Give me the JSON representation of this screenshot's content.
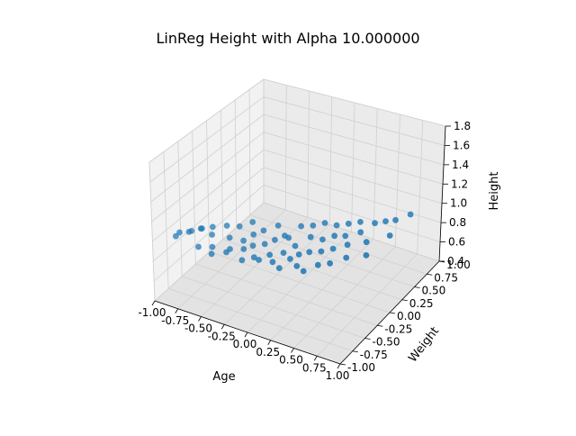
{
  "chart_data": {
    "type": "scatter",
    "projection": "3d",
    "title": "LinReg Height with Alpha 10.000000",
    "xlabel": "Age",
    "ylabel": "Weight",
    "zlabel": "Height",
    "xlim": [
      -1.0,
      1.0
    ],
    "ylim": [
      -1.0,
      1.0
    ],
    "zlim": [
      0.4,
      1.8
    ],
    "xticks": [
      "-1.00",
      "-0.75",
      "-0.50",
      "-0.25",
      "0.00",
      "0.25",
      "0.50",
      "0.75",
      "1.00"
    ],
    "yticks": [
      "-1.00",
      "-0.75",
      "-0.50",
      "-0.25",
      "0.00",
      "0.25",
      "0.50",
      "0.75",
      "1.00"
    ],
    "zticks": [
      "0.4",
      "0.6",
      "0.8",
      "1.0",
      "1.2",
      "1.4",
      "1.6",
      "1.8"
    ],
    "grid": true,
    "marker_color": "#1f77b4",
    "points": [
      {
        "x": -0.98,
        "y": -0.62,
        "z": 0.88
      },
      {
        "x": -0.92,
        "y": -0.65,
        "z": 0.95
      },
      {
        "x": -0.88,
        "y": -0.55,
        "z": 0.92
      },
      {
        "x": -0.82,
        "y": -0.6,
        "z": 0.97
      },
      {
        "x": -0.78,
        "y": -0.48,
        "z": 0.95
      },
      {
        "x": -0.75,
        "y": -0.55,
        "z": 0.99
      },
      {
        "x": -0.72,
        "y": -0.65,
        "z": 0.86
      },
      {
        "x": -0.7,
        "y": -0.42,
        "z": 0.96
      },
      {
        "x": -0.66,
        "y": -0.5,
        "z": 0.93
      },
      {
        "x": -0.6,
        "y": -0.6,
        "z": 0.87
      },
      {
        "x": -0.57,
        "y": -0.38,
        "z": 0.99
      },
      {
        "x": -0.55,
        "y": -0.7,
        "z": 0.86
      },
      {
        "x": -0.5,
        "y": -0.45,
        "z": 0.92
      },
      {
        "x": -0.48,
        "y": -0.3,
        "z": 0.97
      },
      {
        "x": -0.44,
        "y": -0.55,
        "z": 0.87
      },
      {
        "x": -0.42,
        "y": -0.65,
        "z": 0.89
      },
      {
        "x": -0.38,
        "y": -0.4,
        "z": 0.9
      },
      {
        "x": -0.35,
        "y": -0.28,
        "z": 1.04
      },
      {
        "x": -0.32,
        "y": -0.5,
        "z": 0.88
      },
      {
        "x": -0.3,
        "y": -0.35,
        "z": 0.96
      },
      {
        "x": -0.27,
        "y": -0.62,
        "z": 0.84
      },
      {
        "x": -0.25,
        "y": -0.45,
        "z": 0.91
      },
      {
        "x": -0.22,
        "y": -0.3,
        "z": 1.0
      },
      {
        "x": -0.18,
        "y": -0.55,
        "z": 0.86
      },
      {
        "x": -0.15,
        "y": -0.4,
        "z": 0.93
      },
      {
        "x": -0.12,
        "y": -0.2,
        "z": 1.03
      },
      {
        "x": -0.1,
        "y": -0.6,
        "z": 0.88
      },
      {
        "x": -0.07,
        "y": -0.35,
        "z": 0.97
      },
      {
        "x": -0.04,
        "y": -0.5,
        "z": 0.9
      },
      {
        "x": -0.02,
        "y": -0.25,
        "z": 0.98
      },
      {
        "x": 0.02,
        "y": -0.55,
        "z": 0.87
      },
      {
        "x": 0.05,
        "y": -0.3,
        "z": 1.0
      },
      {
        "x": 0.08,
        "y": -0.45,
        "z": 0.93
      },
      {
        "x": 0.1,
        "y": -0.15,
        "z": 1.06
      },
      {
        "x": 0.12,
        "y": -0.6,
        "z": 0.86
      },
      {
        "x": 0.15,
        "y": -0.35,
        "z": 0.97
      },
      {
        "x": 0.18,
        "y": -0.5,
        "z": 0.92
      },
      {
        "x": 0.2,
        "y": -0.1,
        "z": 1.07
      },
      {
        "x": 0.23,
        "y": -0.42,
        "z": 0.94
      },
      {
        "x": 0.26,
        "y": -0.25,
        "z": 1.04
      },
      {
        "x": 0.28,
        "y": -0.55,
        "z": 0.9
      },
      {
        "x": 0.3,
        "y": -0.05,
        "z": 1.1
      },
      {
        "x": 0.33,
        "y": -0.4,
        "z": 0.98
      },
      {
        "x": 0.36,
        "y": -0.2,
        "z": 1.02
      },
      {
        "x": 0.38,
        "y": -0.6,
        "z": 0.9
      },
      {
        "x": 0.4,
        "y": 0.0,
        "z": 1.08
      },
      {
        "x": 0.43,
        "y": -0.35,
        "z": 0.99
      },
      {
        "x": 0.46,
        "y": -0.15,
        "z": 1.06
      },
      {
        "x": 0.48,
        "y": -0.5,
        "z": 0.94
      },
      {
        "x": 0.5,
        "y": 0.05,
        "z": 1.1
      },
      {
        "x": 0.53,
        "y": -0.3,
        "z": 1.02
      },
      {
        "x": 0.55,
        "y": -0.1,
        "z": 1.06
      },
      {
        "x": 0.58,
        "y": -0.45,
        "z": 0.96
      },
      {
        "x": 0.6,
        "y": 0.1,
        "z": 1.12
      },
      {
        "x": 0.63,
        "y": -0.2,
        "z": 1.04
      },
      {
        "x": 0.66,
        "y": 0.0,
        "z": 1.08
      },
      {
        "x": 0.7,
        "y": -0.35,
        "z": 1.0
      },
      {
        "x": 0.73,
        "y": 0.15,
        "z": 1.12
      },
      {
        "x": 0.78,
        "y": -0.1,
        "z": 1.06
      },
      {
        "x": 0.82,
        "y": 0.2,
        "z": 1.14
      },
      {
        "x": 0.86,
        "y": -0.25,
        "z": 1.02
      },
      {
        "x": 0.9,
        "y": 0.25,
        "z": 1.15
      },
      {
        "x": 0.95,
        "y": 0.05,
        "z": 1.1
      },
      {
        "x": 0.98,
        "y": 0.4,
        "z": 1.16
      }
    ]
  }
}
